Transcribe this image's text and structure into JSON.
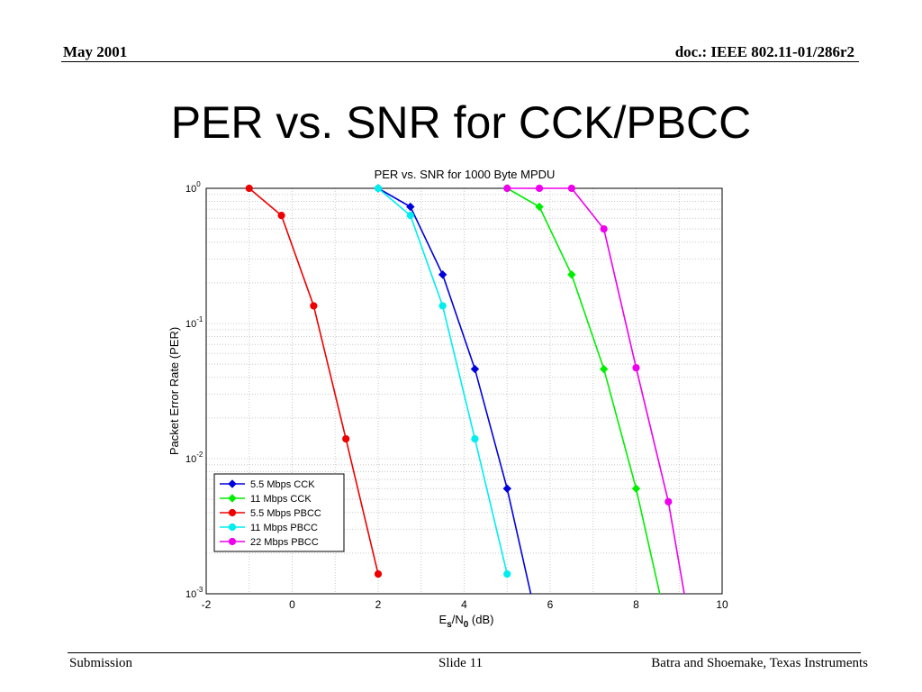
{
  "header": {
    "date": "May 2001",
    "doc_id": "doc.: IEEE 802.11-01/286r2"
  },
  "slide": {
    "title": "PER vs. SNR for CCK/PBCC"
  },
  "footer": {
    "left": "Submission",
    "center": "Slide 11",
    "right": "Batra and Shoemake, Texas Instruments"
  },
  "chart_data": {
    "type": "line",
    "title": "PER vs. SNR for 1000 Byte MPDU",
    "xlabel_main": "E",
    "xlabel_sub1": "s",
    "xlabel_mid": "/N",
    "xlabel_sub2": "0",
    "xlabel_unit": " (dB)",
    "ylabel": "Packet Error Rate (PER)",
    "xlim": [
      -2,
      10
    ],
    "ylim": [
      0.001,
      1
    ],
    "yscale": "log",
    "grid": true,
    "legend_position": "bottom-left",
    "x_ticks": [
      "-2",
      "0",
      "2",
      "4",
      "6",
      "8",
      "10"
    ],
    "y_ticks": [
      {
        "base": "10",
        "exp": "0"
      },
      {
        "base": "10",
        "exp": "-1"
      },
      {
        "base": "10",
        "exp": "-2"
      },
      {
        "base": "10",
        "exp": "-3"
      }
    ],
    "series": [
      {
        "name": "5.5 Mbps CCK",
        "color": "#0000dd",
        "marker": "diamond",
        "x": [
          2.0,
          2.75,
          3.5,
          4.25,
          5.0,
          5.55
        ],
        "y": [
          1.0,
          0.73,
          0.23,
          0.046,
          0.006,
          0.001
        ]
      },
      {
        "name": "11 Mbps CCK",
        "color": "#00ee00",
        "marker": "diamond",
        "x": [
          5.0,
          5.75,
          6.5,
          7.25,
          8.0,
          8.55
        ],
        "y": [
          1.0,
          0.73,
          0.23,
          0.046,
          0.006,
          0.001
        ]
      },
      {
        "name": "5.5 Mbps PBCC",
        "color": "#ee0000",
        "marker": "circle",
        "x": [
          -1.0,
          -0.25,
          0.5,
          1.25,
          2.0
        ],
        "y": [
          1.0,
          0.63,
          0.135,
          0.014,
          0.0014
        ]
      },
      {
        "name": "11 Mbps PBCC",
        "color": "#00eeee",
        "marker": "circle",
        "x": [
          2.0,
          2.75,
          3.5,
          4.25,
          5.0
        ],
        "y": [
          1.0,
          0.63,
          0.135,
          0.014,
          0.0014
        ]
      },
      {
        "name": "22 Mbps PBCC",
        "color": "#ee00ee",
        "marker": "circle",
        "x": [
          5.0,
          5.75,
          6.5,
          7.25,
          8.0,
          8.75,
          9.12
        ],
        "y": [
          1.0,
          1.0,
          1.0,
          0.5,
          0.047,
          0.0048,
          0.001
        ]
      }
    ]
  }
}
